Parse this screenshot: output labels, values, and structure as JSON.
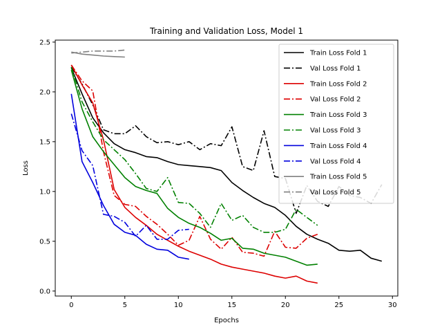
{
  "chart_data": {
    "type": "line",
    "title": "Training and Validation Loss, Model 1",
    "xlabel": "Epochs",
    "ylabel": "Loss",
    "xlim": [
      -1.5,
      30.5
    ],
    "ylim": [
      -0.05,
      2.52
    ],
    "xticks": [
      0,
      5,
      10,
      15,
      20,
      25,
      30
    ],
    "yticks": [
      0.0,
      0.5,
      1.0,
      1.5,
      2.0,
      2.5
    ],
    "grid": false,
    "legend_position": "top-right",
    "series": [
      {
        "name": "Train Loss Fold 1",
        "color": "#000000",
        "dash": "solid",
        "x": [
          0,
          1,
          2,
          3,
          4,
          5,
          6,
          7,
          8,
          9,
          10,
          11,
          12,
          13,
          14,
          15,
          16,
          17,
          18,
          19,
          20,
          21,
          22,
          23,
          24,
          25,
          26,
          27,
          28,
          29
        ],
        "y": [
          2.24,
          1.98,
          1.74,
          1.59,
          1.48,
          1.42,
          1.39,
          1.35,
          1.34,
          1.3,
          1.27,
          1.26,
          1.25,
          1.24,
          1.21,
          1.09,
          1.01,
          0.94,
          0.88,
          0.84,
          0.76,
          0.65,
          0.57,
          0.52,
          0.48,
          0.41,
          0.4,
          0.41,
          0.33,
          0.3
        ]
      },
      {
        "name": "Val Loss Fold 1",
        "color": "#000000",
        "dash": "dashdot",
        "x": [
          0,
          1,
          2,
          3,
          4,
          5,
          6,
          7,
          8,
          9,
          10,
          11,
          12,
          13,
          14,
          15,
          16,
          17,
          18,
          19,
          20,
          21,
          22,
          23,
          24,
          25,
          26,
          27,
          28,
          29
        ],
        "y": [
          2.25,
          2.08,
          1.87,
          1.62,
          1.58,
          1.58,
          1.66,
          1.55,
          1.49,
          1.5,
          1.47,
          1.5,
          1.42,
          1.48,
          1.46,
          1.65,
          1.25,
          1.21,
          1.61,
          1.15,
          1.13,
          0.78,
          1.06,
          0.9,
          0.85,
          1.05,
          0.96,
          0.94,
          0.88,
          1.07
        ]
      },
      {
        "name": "Train Loss Fold 2",
        "color": "#dd0000",
        "dash": "solid",
        "x": [
          0,
          1,
          2,
          3,
          4,
          5,
          6,
          7,
          8,
          9,
          10,
          11,
          12,
          13,
          14,
          15,
          16,
          17,
          18,
          19,
          20,
          21,
          22,
          23
        ],
        "y": [
          2.27,
          2.07,
          1.89,
          1.52,
          1.02,
          0.84,
          0.74,
          0.66,
          0.57,
          0.51,
          0.45,
          0.4,
          0.36,
          0.32,
          0.27,
          0.24,
          0.22,
          0.2,
          0.18,
          0.15,
          0.13,
          0.15,
          0.1,
          0.08
        ]
      },
      {
        "name": "Val Loss Fold 2",
        "color": "#dd0000",
        "dash": "dashdot",
        "x": [
          0,
          1,
          2,
          3,
          4,
          5,
          6,
          7,
          8,
          9,
          10,
          11,
          12,
          13,
          14,
          15,
          16,
          17,
          18,
          19,
          20,
          21,
          22,
          23
        ],
        "y": [
          2.27,
          2.11,
          2.01,
          1.4,
          0.96,
          0.87,
          0.85,
          0.75,
          0.67,
          0.57,
          0.46,
          0.51,
          0.75,
          0.52,
          0.42,
          0.54,
          0.39,
          0.38,
          0.35,
          0.6,
          0.44,
          0.43,
          0.53,
          0.57
        ]
      },
      {
        "name": "Train Loss Fold 3",
        "color": "#008000",
        "dash": "solid",
        "x": [
          0,
          1,
          2,
          3,
          4,
          5,
          6,
          7,
          8,
          9,
          10,
          11,
          12,
          13,
          14,
          15,
          16,
          17,
          18,
          19,
          20,
          21,
          22,
          23
        ],
        "y": [
          2.22,
          1.83,
          1.55,
          1.4,
          1.27,
          1.14,
          1.05,
          1.01,
          0.98,
          0.83,
          0.74,
          0.68,
          0.64,
          0.58,
          0.51,
          0.53,
          0.43,
          0.42,
          0.38,
          0.36,
          0.34,
          0.3,
          0.26,
          0.27
        ]
      },
      {
        "name": "Val Loss Fold 3",
        "color": "#008000",
        "dash": "dashdot",
        "x": [
          0,
          1,
          2,
          3,
          4,
          5,
          6,
          7,
          8,
          9,
          10,
          11,
          12,
          13,
          14,
          15,
          16,
          17,
          18,
          19,
          20,
          21,
          22,
          23
        ],
        "y": [
          2.25,
          1.9,
          1.7,
          1.52,
          1.42,
          1.32,
          1.18,
          1.03,
          1.0,
          1.14,
          0.89,
          0.88,
          0.78,
          0.64,
          0.88,
          0.71,
          0.76,
          0.64,
          0.59,
          0.59,
          0.62,
          0.82,
          0.74,
          0.66
        ]
      },
      {
        "name": "Train Loss Fold 4",
        "color": "#0000dd",
        "dash": "solid",
        "x": [
          0,
          1,
          2,
          3,
          4,
          5,
          6,
          7,
          8,
          9,
          10,
          11
        ],
        "y": [
          1.98,
          1.3,
          1.09,
          0.86,
          0.67,
          0.59,
          0.56,
          0.47,
          0.42,
          0.41,
          0.34,
          0.32
        ]
      },
      {
        "name": "Val Loss Fold 4",
        "color": "#0000dd",
        "dash": "dashdot",
        "x": [
          0,
          1,
          2,
          3,
          4,
          5,
          6,
          7,
          8,
          9,
          10,
          11
        ],
        "y": [
          1.78,
          1.41,
          1.26,
          0.77,
          0.75,
          0.69,
          0.55,
          0.66,
          0.52,
          0.52,
          0.61,
          0.62
        ]
      },
      {
        "name": "Train Loss Fold 5",
        "color": "#808080",
        "dash": "solid",
        "x": [
          0,
          1,
          2,
          3,
          4,
          5
        ],
        "y": [
          2.4,
          2.38,
          2.37,
          2.36,
          2.355,
          2.35
        ]
      },
      {
        "name": "Val Loss Fold 5",
        "color": "#808080",
        "dash": "dashdot",
        "x": [
          0,
          1,
          2,
          3,
          4,
          5
        ],
        "y": [
          2.39,
          2.4,
          2.41,
          2.41,
          2.41,
          2.42
        ]
      }
    ]
  }
}
